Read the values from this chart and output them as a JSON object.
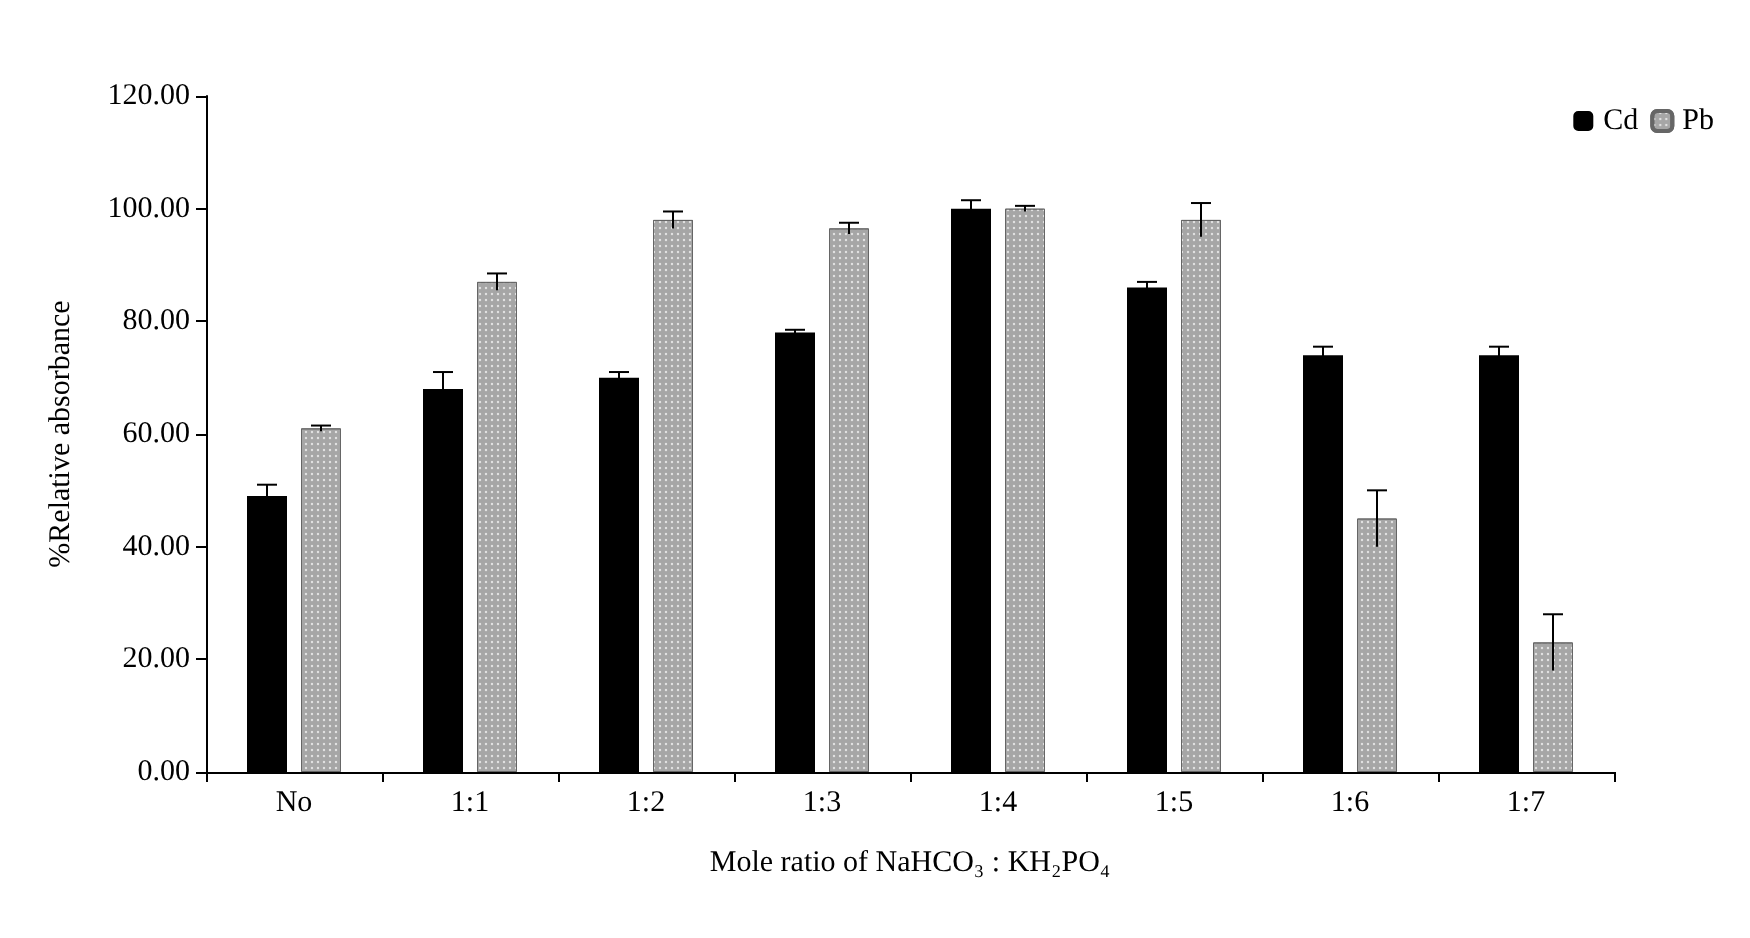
{
  "chart_data": {
    "type": "bar",
    "xlabel": "Mole ratio of NaHCO₃ : KH₂PO₄",
    "ylabel": "%Relative absorbance",
    "categories": [
      "No",
      "1:1",
      "1:2",
      "1:3",
      "1:4",
      "1:5",
      "1:6",
      "1:7"
    ],
    "series": [
      {
        "name": "Cd",
        "color": "#000000",
        "values": [
          49,
          68,
          70,
          78,
          100,
          86,
          74,
          74
        ],
        "errors": [
          2,
          3,
          1,
          0.5,
          1.5,
          1,
          1.5,
          1.5
        ]
      },
      {
        "name": "Pb",
        "color": "#a6a6a6",
        "values": [
          61,
          87,
          98,
          96.5,
          100,
          98,
          45,
          23
        ],
        "errors": [
          0.5,
          1.5,
          1.5,
          1,
          0.5,
          3,
          5,
          5
        ]
      }
    ],
    "ylim": [
      0,
      120
    ],
    "yticks": [
      {
        "value": 0,
        "label": "0.00"
      },
      {
        "value": 20,
        "label": "20.00"
      },
      {
        "value": 40,
        "label": "40.00"
      },
      {
        "value": 60,
        "label": "60.00"
      },
      {
        "value": 80,
        "label": "80.00"
      },
      {
        "value": 100,
        "label": "100.00"
      },
      {
        "value": 120,
        "label": "120.00"
      }
    ],
    "grid": false,
    "legend": "top right"
  }
}
